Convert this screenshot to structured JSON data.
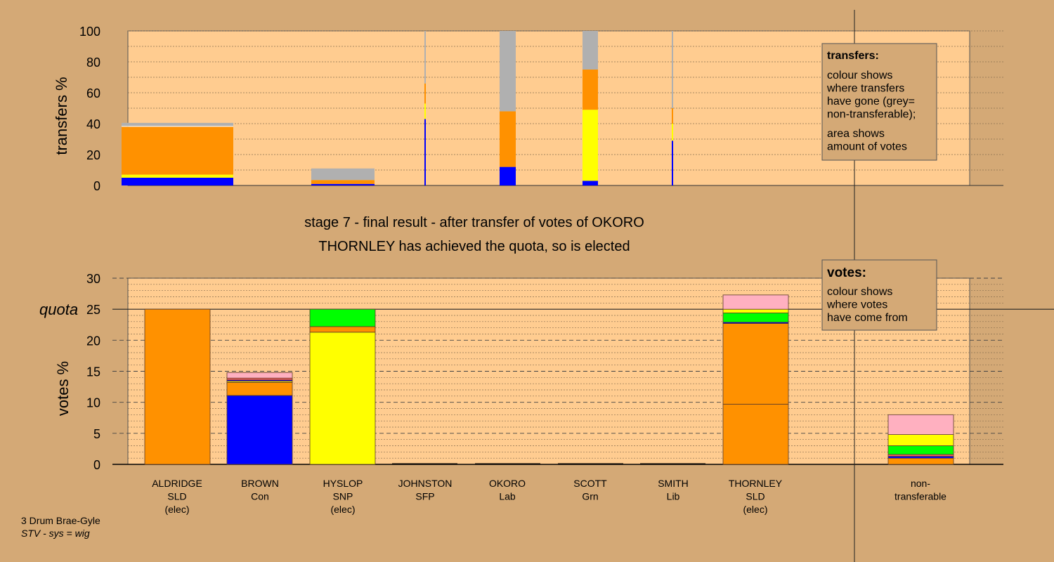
{
  "chart_data": [
    {
      "type": "bar",
      "ylabel": "transfers %",
      "ylim": [
        0,
        100
      ],
      "yticks": [
        "0",
        "20",
        "40",
        "60",
        "80",
        "100"
      ],
      "legend": {
        "title": "transfers:",
        "lines": [
          "colour shows",
          "where transfers",
          "have gone (grey=",
          "non-transferable);"
        ],
        "lines2": [
          "area shows",
          "amount of votes"
        ]
      },
      "bars": [
        {
          "segments": [
            {
              "color": "#0000ff",
              "value": 5
            },
            {
              "color": "#ffff00",
              "value": 2
            },
            {
              "color": "#ff9100",
              "value": 31
            },
            {
              "color": "#ffffff",
              "value": 0.5
            },
            {
              "color": "#b0b0b0",
              "value": 2
            }
          ]
        },
        {
          "segments": [
            {
              "color": "#0000ff",
              "value": 1
            },
            {
              "color": "#ff9100",
              "value": 2.5
            },
            {
              "color": "#b0b0b0",
              "value": 7.5
            }
          ]
        },
        {
          "segments": [
            {
              "color": "#0000ff",
              "value": 43
            },
            {
              "color": "#ffff00",
              "value": 10
            },
            {
              "color": "#ff9100",
              "value": 13
            },
            {
              "color": "#b0b0b0",
              "value": 34
            }
          ]
        },
        {
          "segments": [
            {
              "color": "#0000ff",
              "value": 12
            },
            {
              "color": "#ff9100",
              "value": 36
            },
            {
              "color": "#b0b0b0",
              "value": 52
            }
          ]
        },
        {
          "segments": [
            {
              "color": "#0000ff",
              "value": 3
            },
            {
              "color": "#ffff00",
              "value": 46
            },
            {
              "color": "#ff9100",
              "value": 26
            },
            {
              "color": "#b0b0b0",
              "value": 25
            }
          ]
        },
        {
          "segments": [
            {
              "color": "#0000ff",
              "value": 29
            },
            {
              "color": "#ffff00",
              "value": 11
            },
            {
              "color": "#ff9100",
              "value": 10
            },
            {
              "color": "#b0b0b0",
              "value": 50
            }
          ]
        }
      ]
    },
    {
      "type": "bar",
      "ylabel": "votes %",
      "ylim": [
        0,
        30
      ],
      "quota": 25,
      "quota_label": "quota",
      "yticks": [
        "0",
        "5",
        "10",
        "15",
        "20",
        "25",
        "30"
      ],
      "legend": {
        "title": "votes:",
        "lines": [
          "colour shows",
          "where votes",
          "have come from"
        ]
      },
      "candidates": [
        {
          "name": "ALDRIDGE",
          "party": "SLD",
          "status": "(elec)",
          "segments": [
            {
              "color": "#ff9100",
              "value": 25
            }
          ]
        },
        {
          "name": "BROWN",
          "party": "Con",
          "status": "",
          "segments": [
            {
              "color": "#0000ff",
              "value": 11.1
            },
            {
              "color": "#ff9100",
              "value": 2.1
            },
            {
              "color": "#ffff00",
              "value": 0.2
            },
            {
              "color": "#0000ff",
              "value": 0.2
            },
            {
              "color": "#ff6060",
              "value": 0.3
            },
            {
              "color": "#ffb0c0",
              "value": 0.9
            }
          ]
        },
        {
          "name": "HYSLOP",
          "party": "SNP",
          "status": "(elec)",
          "segments": [
            {
              "color": "#ffff00",
              "value": 21.3
            },
            {
              "color": "#ff9100",
              "value": 0.9
            },
            {
              "color": "#00ff00",
              "value": 2.8
            }
          ]
        },
        {
          "name": "JOHNSTON",
          "party": "SFP",
          "status": "",
          "segments": []
        },
        {
          "name": "OKORO",
          "party": "Lab",
          "status": "",
          "segments": []
        },
        {
          "name": "SCOTT",
          "party": "Grn",
          "status": "",
          "segments": []
        },
        {
          "name": "SMITH",
          "party": "Lib",
          "status": "",
          "segments": []
        },
        {
          "name": "THORNLEY",
          "party": "SLD",
          "status": "(elec)",
          "segments": [
            {
              "color": "#ff9100",
              "value": 9.7
            },
            {
              "color": "#ff9100",
              "value": 13.0
            },
            {
              "color": "#0000ff",
              "value": 0.2
            },
            {
              "color": "#00ff00",
              "value": 1.5
            },
            {
              "color": "#ffff00",
              "value": 0.6
            },
            {
              "color": "#ffb0c0",
              "value": 2.3
            }
          ]
        },
        {
          "name": "non-",
          "party": "transferable",
          "status": "",
          "segments": [
            {
              "color": "#ff9100",
              "value": 1.0
            },
            {
              "color": "#0000ff",
              "value": 0.3
            },
            {
              "color": "#ff6060",
              "value": 0.3
            },
            {
              "color": "#00ff00",
              "value": 1.4
            },
            {
              "color": "#ffff00",
              "value": 1.8
            },
            {
              "color": "#ffb0c0",
              "value": 3.2
            }
          ]
        }
      ]
    }
  ],
  "stage_title": "stage 7 - final result - after transfer of votes of OKORO",
  "stage_subtitle": "THORNLEY has achieved the quota, so is elected",
  "footer": {
    "ward": "3 Drum Brae-Gyle",
    "system": "STV - sys = wig"
  },
  "colors": {
    "background": "#d4a976",
    "plot_area": "#ffcc90",
    "legend_box": "#d4a976"
  }
}
